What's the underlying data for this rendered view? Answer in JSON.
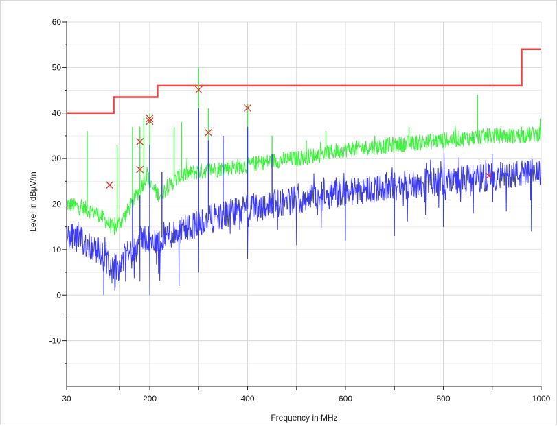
{
  "chart_data": {
    "type": "line",
    "title": "",
    "xlabel": "Frequency in MHz",
    "ylabel": "Level in dBµV/m",
    "x_scale": "log-segment 30-200, linear 200-1000",
    "xlim": [
      30,
      1000
    ],
    "ylim": [
      -20,
      60
    ],
    "grid": true,
    "legend": "none",
    "x_tick_labels": [
      "30",
      "200",
      "400",
      "600",
      "800",
      "1000"
    ],
    "x_ticks": [
      30,
      200,
      400,
      600,
      800,
      1000
    ],
    "x_minor_ticks": [
      100,
      300,
      500,
      700,
      900
    ],
    "y_tick_labels": [
      "60",
      "50",
      "40",
      "30",
      "20",
      "10",
      "0",
      "-10"
    ],
    "y_ticks": [
      60,
      50,
      40,
      30,
      20,
      10,
      0,
      -10
    ],
    "colors": {
      "limit": "#f04040",
      "peak": "#3ff23f",
      "average": "#3b3bf2",
      "marker": "#e03030",
      "grid": "#d8d8d8",
      "axis": "#222222"
    },
    "series": [
      {
        "type": "step",
        "color": "#f04040",
        "points": [
          [
            30,
            40
          ],
          [
            88,
            40
          ],
          [
            88,
            43.5
          ],
          [
            216,
            43.5
          ],
          [
            216,
            46
          ],
          [
            960,
            46
          ],
          [
            960,
            54
          ],
          [
            1000,
            54
          ]
        ]
      },
      {
        "type": "noise",
        "color": "#3ff23f",
        "baseline": [
          [
            30,
            20
          ],
          [
            60,
            18
          ],
          [
            88,
            14.5
          ],
          [
            110,
            17
          ],
          [
            140,
            21
          ],
          [
            175,
            25
          ],
          [
            190,
            27
          ],
          [
            200,
            24
          ],
          [
            220,
            22
          ],
          [
            240,
            24
          ],
          [
            260,
            26
          ],
          [
            290,
            27
          ],
          [
            320,
            27.5
          ],
          [
            360,
            28
          ],
          [
            400,
            28.5
          ],
          [
            450,
            29.5
          ],
          [
            500,
            30
          ],
          [
            550,
            31
          ],
          [
            600,
            32
          ],
          [
            650,
            32.5
          ],
          [
            700,
            33
          ],
          [
            750,
            33.5
          ],
          [
            800,
            34
          ],
          [
            850,
            34.5
          ],
          [
            900,
            35
          ],
          [
            950,
            35
          ],
          [
            1000,
            35.5
          ]
        ],
        "spikes": [
          [
            48,
            36
          ],
          [
            95,
            33
          ],
          [
            135,
            37
          ],
          [
            160,
            37
          ],
          [
            175,
            39
          ],
          [
            200,
            40
          ],
          [
            250,
            37
          ],
          [
            265,
            38
          ],
          [
            300,
            50
          ],
          [
            320,
            41
          ],
          [
            350,
            34
          ],
          [
            400,
            42
          ],
          [
            450,
            35
          ],
          [
            520,
            34
          ],
          [
            560,
            36
          ],
          [
            660,
            35
          ],
          [
            730,
            37
          ],
          [
            870,
            44
          ],
          [
            960,
            37
          ]
        ]
      },
      {
        "type": "noise",
        "color": "#3b3bf2",
        "baseline": [
          [
            30,
            13
          ],
          [
            60,
            10
          ],
          [
            88,
            5
          ],
          [
            110,
            8
          ],
          [
            140,
            11
          ],
          [
            175,
            13
          ],
          [
            200,
            11
          ],
          [
            230,
            13
          ],
          [
            260,
            14
          ],
          [
            300,
            16
          ],
          [
            350,
            17.5
          ],
          [
            400,
            19
          ],
          [
            450,
            20
          ],
          [
            500,
            21
          ],
          [
            550,
            22
          ],
          [
            600,
            22.5
          ],
          [
            650,
            23.5
          ],
          [
            700,
            24
          ],
          [
            750,
            24.5
          ],
          [
            800,
            25
          ],
          [
            850,
            25.5
          ],
          [
            900,
            26
          ],
          [
            950,
            26.5
          ],
          [
            1000,
            27
          ]
        ],
        "spikes": [
          [
            135,
            21
          ],
          [
            160,
            22
          ],
          [
            200,
            33
          ],
          [
            225,
            27
          ],
          [
            300,
            41
          ],
          [
            320,
            34
          ],
          [
            350,
            35
          ],
          [
            400,
            37
          ],
          [
            450,
            31
          ]
        ],
        "dips": [
          [
            70,
            0
          ],
          [
            90,
            1
          ],
          [
            160,
            3
          ],
          [
            200,
            0
          ],
          [
            260,
            2
          ],
          [
            300,
            5
          ],
          [
            400,
            8
          ],
          [
            500,
            11
          ],
          [
            600,
            12
          ],
          [
            700,
            13
          ],
          [
            800,
            15
          ],
          [
            980,
            14
          ]
        ]
      },
      {
        "type": "markers",
        "color": "#e03030",
        "points": [
          [
            80,
            24.2
          ],
          [
            160,
            27.6
          ],
          [
            160,
            33.7
          ],
          [
            200,
            38.2
          ],
          [
            200,
            38.8
          ],
          [
            300,
            45.1
          ],
          [
            320,
            35.7
          ],
          [
            400,
            41.1
          ],
          [
            893,
            26.2
          ]
        ]
      }
    ]
  }
}
